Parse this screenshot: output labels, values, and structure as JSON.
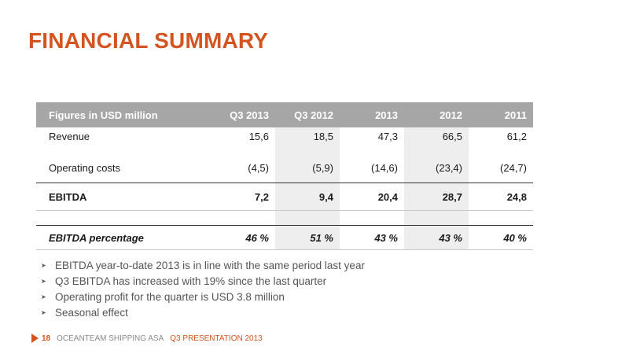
{
  "title": "FINANCIAL SUMMARY",
  "table": {
    "columns": [
      "Figures in USD million",
      "Q3 2013",
      "Q3 2012",
      "2013",
      "2012",
      "2011"
    ],
    "rows": {
      "revenue": {
        "label": "Revenue",
        "values": [
          "15,6",
          "18,5",
          "47,3",
          "66,5",
          "61,2"
        ]
      },
      "operating_costs": {
        "label": "Operating costs",
        "values": [
          "(4,5)",
          "(5,9)",
          "(14,6)",
          "(23,4)",
          "(24,7)"
        ]
      },
      "ebitda": {
        "label": "EBITDA",
        "values": [
          "7,2",
          "9,4",
          "20,4",
          "28,7",
          "24,8"
        ]
      },
      "ebitda_pct": {
        "label": "EBITDA percentage",
        "values": [
          "46 %",
          "51 %",
          "43 %",
          "43 %",
          "40 %"
        ]
      }
    }
  },
  "bullets": [
    "EBITDA year-to-date 2013 is in line with the same period last year",
    "Q3 EBITDA has increased with 19% since the last quarter",
    "Operating profit for the quarter is USD 3.8 million",
    "Seasonal effect"
  ],
  "footer": {
    "page": "18",
    "company": "OCEANTEAM SHIPPING ASA",
    "presentation": "Q3 PRESENTATION 2013"
  },
  "colors": {
    "accent": "#d4541f",
    "header_bg": "#a6a6a6",
    "shade": "#eeeeee"
  },
  "icons": {
    "bullet": "arrowhead-bullet-icon",
    "footer": "triangle-right-icon"
  }
}
